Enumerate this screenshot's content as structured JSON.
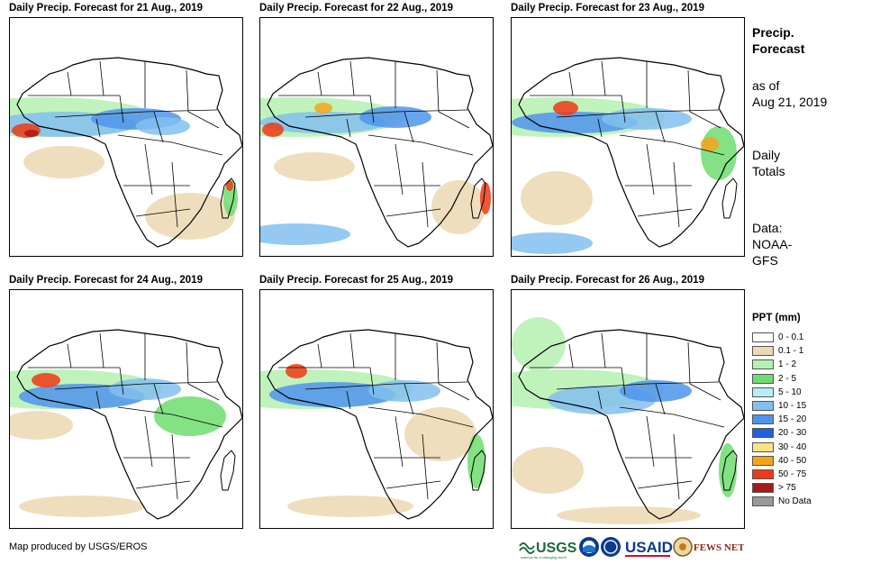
{
  "panels": [
    {
      "title": "Daily Precip. Forecast for 21 Aug., 2019"
    },
    {
      "title": "Daily Precip. Forecast for 22 Aug., 2019"
    },
    {
      "title": "Daily Precip. Forecast for 23 Aug., 2019"
    },
    {
      "title": "Daily Precip. Forecast for 24 Aug., 2019"
    },
    {
      "title": "Daily Precip. Forecast for 25 Aug., 2019"
    },
    {
      "title": "Daily Precip. Forecast for 26 Aug., 2019"
    }
  ],
  "side_info": {
    "title_line1": "Precip.",
    "title_line2": "Forecast",
    "asof_line1": "as of",
    "asof_line2": "Aug 21, 2019",
    "totals_line1": "Daily",
    "totals_line2": "Totals",
    "data_line1": "Data:",
    "data_line2": "NOAA-",
    "data_line3": "GFS"
  },
  "legend": {
    "title": "PPT (mm)",
    "items": [
      {
        "label": "0 - 0.1",
        "color": "#ffffff"
      },
      {
        "label": "0.1 - 1",
        "color": "#ecd8b2"
      },
      {
        "label": "1 - 2",
        "color": "#b5f0b0"
      },
      {
        "label": "2 - 5",
        "color": "#6fdc6f"
      },
      {
        "label": "5 - 10",
        "color": "#b3eef5"
      },
      {
        "label": "10 - 15",
        "color": "#83bff0"
      },
      {
        "label": "15 - 20",
        "color": "#4f94ec"
      },
      {
        "label": "20 - 30",
        "color": "#1f62e0"
      },
      {
        "label": "30 - 40",
        "color": "#fbe285"
      },
      {
        "label": "40 - 50",
        "color": "#f7a318"
      },
      {
        "label": "50 - 75",
        "color": "#ee3a14"
      },
      {
        "label": "> 75",
        "color": "#a41a1a"
      },
      {
        "label": "No Data",
        "color": "#999999"
      }
    ]
  },
  "credit": "Map produced by USGS/EROS",
  "logos": {
    "usgs": "USGS",
    "usgs_tagline": "science for a changing world",
    "usaid": "USAID",
    "fewsnet": "FEWS NET"
  }
}
